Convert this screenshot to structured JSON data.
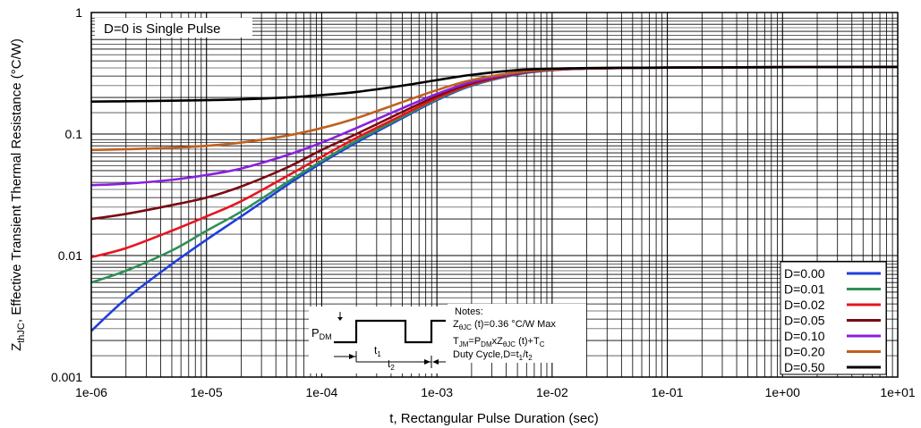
{
  "chart_data": {
    "type": "line",
    "xlabel": "t, Rectangular Pulse Duration (sec)",
    "ylabel": "Z",
    "ylabel_sub": "thJC",
    "ylabel_rest": ", Effective Transient Thermal Resistance (°C/W)",
    "x_scale": "log",
    "y_scale": "log",
    "xlim": [
      1e-06,
      10
    ],
    "ylim": [
      0.001,
      1
    ],
    "grid": true,
    "x_ticks": [
      "1e-06",
      "1e-05",
      "1e-04",
      "1e-03",
      "1e-02",
      "1e-01",
      "1e+00",
      "1e+01"
    ],
    "y_ticks": [
      "0.001",
      "0.01",
      "0.1",
      "1"
    ],
    "annotation": "D=0 is Single Pulse",
    "legend_position": "bottom-right",
    "series": [
      {
        "name": "D=0.00",
        "color": "#1f3fdc",
        "x": [
          1e-06,
          2e-06,
          5e-06,
          1e-05,
          2e-05,
          5e-05,
          0.0001,
          0.0002,
          0.0005,
          0.001,
          0.002,
          0.005,
          0.01,
          0.02,
          0.05,
          0.1,
          1,
          10
        ],
        "y": [
          0.0024,
          0.0044,
          0.0085,
          0.0135,
          0.021,
          0.038,
          0.058,
          0.085,
          0.135,
          0.19,
          0.25,
          0.31,
          0.335,
          0.345,
          0.35,
          0.352,
          0.355,
          0.357
        ]
      },
      {
        "name": "D=0.01",
        "color": "#2f8f57",
        "x": [
          1e-06,
          2e-06,
          5e-06,
          1e-05,
          2e-05,
          5e-05,
          0.0001,
          0.0002,
          0.0005,
          0.001,
          0.002,
          0.005,
          0.01,
          0.02,
          0.05,
          0.1,
          1,
          10
        ],
        "y": [
          0.006,
          0.0075,
          0.011,
          0.016,
          0.023,
          0.04,
          0.06,
          0.088,
          0.138,
          0.193,
          0.252,
          0.312,
          0.336,
          0.346,
          0.35,
          0.352,
          0.355,
          0.357
        ]
      },
      {
        "name": "D=0.02",
        "color": "#e8141e",
        "x": [
          1e-06,
          2e-06,
          5e-06,
          1e-05,
          2e-05,
          5e-05,
          0.0001,
          0.0002,
          0.0005,
          0.001,
          0.002,
          0.005,
          0.01,
          0.02,
          0.05,
          0.1,
          1,
          10
        ],
        "y": [
          0.0097,
          0.0115,
          0.016,
          0.021,
          0.028,
          0.045,
          0.065,
          0.093,
          0.143,
          0.198,
          0.256,
          0.314,
          0.337,
          0.346,
          0.35,
          0.352,
          0.355,
          0.357
        ]
      },
      {
        "name": "D=0.05",
        "color": "#7a0a12",
        "x": [
          1e-06,
          2e-06,
          5e-06,
          1e-05,
          2e-05,
          5e-05,
          0.0001,
          0.0002,
          0.0005,
          0.001,
          0.002,
          0.005,
          0.01,
          0.02,
          0.05,
          0.1,
          1,
          10
        ],
        "y": [
          0.02,
          0.022,
          0.026,
          0.03,
          0.037,
          0.053,
          0.074,
          0.1,
          0.152,
          0.205,
          0.262,
          0.316,
          0.338,
          0.346,
          0.35,
          0.352,
          0.355,
          0.357
        ]
      },
      {
        "name": "D=0.10",
        "color": "#8a1fe0",
        "x": [
          1e-06,
          2e-06,
          5e-06,
          1e-05,
          2e-05,
          5e-05,
          0.0001,
          0.0002,
          0.0005,
          0.001,
          0.002,
          0.005,
          0.01,
          0.02,
          0.05,
          0.1,
          1,
          10
        ],
        "y": [
          0.038,
          0.039,
          0.042,
          0.046,
          0.052,
          0.067,
          0.085,
          0.112,
          0.163,
          0.214,
          0.268,
          0.318,
          0.339,
          0.347,
          0.35,
          0.352,
          0.355,
          0.357
        ]
      },
      {
        "name": "D=0.20",
        "color": "#c0601e",
        "x": [
          1e-06,
          2e-06,
          5e-06,
          1e-05,
          2e-05,
          5e-05,
          0.0001,
          0.0002,
          0.0005,
          0.001,
          0.002,
          0.005,
          0.01,
          0.02,
          0.05,
          0.1,
          1,
          10
        ],
        "y": [
          0.074,
          0.075,
          0.077,
          0.08,
          0.085,
          0.097,
          0.112,
          0.135,
          0.183,
          0.23,
          0.278,
          0.322,
          0.34,
          0.347,
          0.35,
          0.352,
          0.355,
          0.357
        ]
      },
      {
        "name": "D=0.50",
        "color": "#000000",
        "x": [
          1e-06,
          2e-06,
          5e-06,
          1e-05,
          2e-05,
          5e-05,
          0.0001,
          0.0002,
          0.0005,
          0.001,
          0.002,
          0.005,
          0.01,
          0.02,
          0.05,
          0.1,
          1,
          10
        ],
        "y": [
          0.185,
          0.186,
          0.188,
          0.19,
          0.193,
          0.2,
          0.209,
          0.222,
          0.25,
          0.278,
          0.307,
          0.336,
          0.345,
          0.349,
          0.351,
          0.352,
          0.355,
          0.357
        ]
      }
    ],
    "notes": {
      "heading": "Notes:",
      "line1_main": "Z",
      "line1_sub": "θJC",
      "line1_rest": " (t)=0.36 °C/W Max",
      "line2_a": "T",
      "line2_a_sub": "JM",
      "line2_b": "=P",
      "line2_b_sub": "DM",
      "line2_c": "xZ",
      "line2_c_sub": "θJC",
      "line2_d": " (t)+T",
      "line2_d_sub": "C",
      "line3": "Duty Cycle,D=t",
      "line3_sub1": "1",
      "line3_mid": "/t",
      "line3_sub2": "2"
    },
    "pulse_labels": {
      "p": "P",
      "p_sub": "DM",
      "t1": "t",
      "t1_sub": "1",
      "t2": "t",
      "t2_sub": "2"
    }
  }
}
